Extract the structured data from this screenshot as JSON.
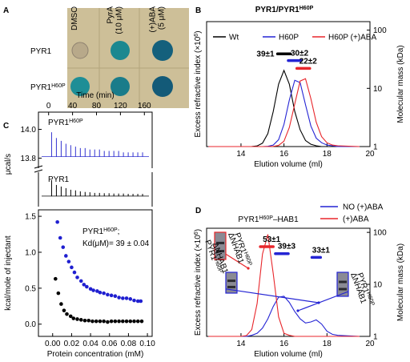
{
  "panel_labels": [
    "A",
    "B",
    "C",
    "D"
  ],
  "panel_a": {
    "columns": [
      {
        "lines": [
          "DMSO"
        ]
      },
      {
        "lines": [
          "PyrA",
          "(10 μM)"
        ]
      },
      {
        "lines": [
          "(+)ABA",
          "(5 μM)"
        ]
      }
    ],
    "rows": [
      [
        "PYR1"
      ],
      [
        "PYR1",
        "H60P"
      ]
    ]
  },
  "chart_data": [
    {
      "type": "line",
      "title": [
        "PYR1/PYR1",
        "H60P"
      ],
      "xlabel": "Elution volume (ml)",
      "ylabel": [
        "Excess refractive index (×10",
        "6",
        ")"
      ],
      "y2label": "Molecular mass (kDa)",
      "x": [
        12.5,
        14,
        14.25,
        14.5,
        14.75,
        15,
        15.25,
        15.5,
        15.75,
        16,
        16.25,
        16.5,
        16.75,
        17,
        17.25,
        17.5,
        17.75,
        18,
        18.25,
        18.5,
        19.5
      ],
      "xlim": [
        12.4,
        20
      ],
      "xticks": [
        14,
        16,
        18,
        20
      ],
      "ylim": [
        0,
        1.64
      ],
      "y2lim": [
        1,
        140
      ],
      "y2ticks": [
        1,
        10,
        100
      ],
      "y2scale": "log",
      "legend": "top",
      "series": [
        {
          "name": "Wt",
          "color": "#000000",
          "values": [
            0,
            0,
            0,
            0.001,
            0.008,
            0.044,
            0.17,
            0.46,
            0.82,
            1,
            0.82,
            0.46,
            0.22,
            0.08,
            0.03,
            0.01,
            0,
            0,
            0,
            0,
            0
          ]
        },
        {
          "name": "H60P",
          "color": "#2424d4",
          "values": [
            0,
            0,
            0,
            0,
            0,
            0,
            0.003,
            0.02,
            0.09,
            0.29,
            0.61,
            0.87,
            0.84,
            0.55,
            0.27,
            0.11,
            0.05,
            0.02,
            0.01,
            0,
            0
          ]
        },
        {
          "name": "H60P (+)ABA",
          "color": "#e8262b",
          "values": [
            0,
            0,
            0,
            0,
            0,
            0,
            0,
            0.002,
            0.015,
            0.07,
            0.25,
            0.56,
            0.86,
            0.89,
            0.63,
            0.32,
            0.13,
            0.05,
            0.02,
            0.01,
            0
          ]
        },
        {
          "label": "39±1",
          "color": "#000000",
          "axis": "y2",
          "x": [
            15.7,
            15.9,
            16.1,
            16.3
          ],
          "values": [
            39,
            39,
            39,
            39
          ]
        },
        {
          "label": "30±2",
          "color": "#2424d4",
          "axis": "y2",
          "x": [
            16.2,
            16.4,
            16.6,
            16.8
          ],
          "values": [
            30,
            30,
            30,
            30
          ]
        },
        {
          "label": "22±2",
          "color": "#e8262b",
          "axis": "y2",
          "x": [
            16.6,
            16.8,
            17.0,
            17.2
          ],
          "values": [
            22,
            22,
            22,
            22
          ]
        }
      ]
    },
    {
      "type": "spikes",
      "xlabel": "Time (min)",
      "xaxis": "top",
      "ylabel": "μcal/s",
      "xlim": [
        -17,
        173
      ],
      "xticks": [
        0,
        40,
        80,
        120,
        160
      ],
      "ylim": [
        13.73,
        14.12
      ],
      "yticks": [
        13.8,
        {
          "value": 14,
          "label": "14.0"
        }
      ],
      "series": [
        {
          "name": [
            "PYR1",
            "H60P"
          ],
          "color": "#3434d0",
          "baseline": 13.81,
          "x": [
            5,
            13,
            21,
            29,
            37,
            45,
            53,
            61,
            69,
            77,
            85,
            93,
            101,
            109,
            117,
            125,
            133,
            141,
            149,
            157
          ],
          "values": [
            13.98,
            13.94,
            13.92,
            13.9,
            13.89,
            13.88,
            13.87,
            13.87,
            13.86,
            13.86,
            13.86,
            13.85,
            13.85,
            13.85,
            13.85,
            13.84,
            13.84,
            13.84,
            13.84,
            13.84
          ]
        }
      ]
    },
    {
      "type": "spikes",
      "xlim": [
        -17,
        173
      ],
      "ylim": [
        -0.33,
        0.75
      ],
      "series": [
        {
          "name": [
            "PYR1"
          ],
          "color": "#000000",
          "baseline": 0,
          "x": [
            5,
            13,
            21,
            29,
            37,
            45,
            53,
            61,
            69,
            77,
            85,
            93,
            101,
            109,
            117,
            125,
            133,
            141,
            149,
            157
          ],
          "values": [
            0.5,
            0.35,
            0.3,
            0.25,
            0.2,
            0.18,
            0.15,
            0.13,
            0.12,
            0.1,
            0.1,
            0.09,
            0.09,
            0.08,
            0.08,
            0.08,
            0.07,
            0.07,
            0.07,
            0.07
          ]
        }
      ]
    },
    {
      "type": "scatter",
      "xlabel": "Protein concentration (mM)",
      "ylabel": "kcal/mole of injectant",
      "xlim": [
        -0.015,
        0.105
      ],
      "xticks": [
        {
          "value": 0,
          "label": "0.00"
        },
        0.02,
        0.04,
        0.06,
        0.08,
        {
          "value": 0.1,
          "label": "0.10"
        }
      ],
      "ylim": [
        -0.17,
        1.59
      ],
      "yticks": [
        {
          "value": 0,
          "label": "0.0"
        },
        0.5,
        {
          "value": 1,
          "label": "1.0"
        },
        1.5
      ],
      "note": [
        [
          "PYR1",
          "H60P",
          ";"
        ],
        [
          "Kd(μM)= 39 ± 0.04"
        ]
      ],
      "series": [
        {
          "color": "#1f1fd0",
          "x": [
            0.005,
            0.008,
            0.011,
            0.014,
            0.017,
            0.02,
            0.023,
            0.026,
            0.03,
            0.033,
            0.036,
            0.04,
            0.043,
            0.047,
            0.05,
            0.054,
            0.058,
            0.062,
            0.066,
            0.07,
            0.074,
            0.078,
            0.082,
            0.086,
            0.09,
            0.093
          ],
          "values": [
            1.42,
            1.2,
            1.07,
            0.95,
            0.87,
            0.79,
            0.72,
            0.65,
            0.6,
            0.55,
            0.52,
            0.49,
            0.47,
            0.46,
            0.44,
            0.43,
            0.41,
            0.4,
            0.39,
            0.37,
            0.36,
            0.36,
            0.35,
            0.33,
            0.32,
            0.32
          ]
        },
        {
          "color": "#000000",
          "x": [
            0.003,
            0.006,
            0.009,
            0.012,
            0.015,
            0.019,
            0.022,
            0.026,
            0.03,
            0.034,
            0.038,
            0.042,
            0.046,
            0.05,
            0.054,
            0.058,
            0.062,
            0.066,
            0.07,
            0.074,
            0.078,
            0.082,
            0.086,
            0.09,
            0.094
          ],
          "values": [
            0.63,
            0.43,
            0.28,
            0.19,
            0.14,
            0.11,
            0.08,
            0.07,
            0.06,
            0.05,
            0.05,
            0.04,
            0.04,
            0.04,
            0.04,
            0.03,
            0.04,
            0.04,
            0.04,
            0.04,
            0.04,
            0.04,
            0.04,
            0.04,
            0.04
          ]
        }
      ]
    },
    {
      "type": "line",
      "title": [
        "PYR1",
        "H60P",
        "–HAB1"
      ],
      "xlabel": "Elution volume (ml)",
      "ylabel": [
        "Excess refractive index (×10",
        "6",
        ")"
      ],
      "y2label": "Molecular mass (kDa)",
      "x": [
        12.5,
        14,
        14.25,
        14.5,
        14.75,
        15,
        15.25,
        15.5,
        15.75,
        16,
        16.25,
        16.5,
        16.75,
        17,
        17.25,
        17.5,
        17.75,
        18,
        18.25,
        18.5,
        19.5
      ],
      "xlim": [
        12.4,
        20
      ],
      "xticks": [
        14,
        16,
        18,
        20
      ],
      "ylim": [
        0,
        1.05
      ],
      "y2lim": [
        1,
        120
      ],
      "y2ticks": [
        1,
        10,
        100
      ],
      "y2scale": "log",
      "legend": "outside",
      "inset_labels": [
        [
          "ΔNHAB1"
        ],
        [
          "PYR1",
          "H60P"
        ]
      ],
      "series": [
        {
          "name": "NO (+)ABA",
          "color": "#2424d4",
          "values": [
            0,
            0,
            0,
            0.01,
            0.03,
            0.08,
            0.17,
            0.29,
            0.38,
            0.39,
            0.33,
            0.24,
            0.17,
            0.13,
            0.14,
            0.16,
            0.12,
            0.05,
            0.02,
            0.01,
            0
          ]
        },
        {
          "name": "(+)ABA",
          "color": "#e8262b",
          "values": [
            0,
            0,
            0.007,
            0.066,
            0.32,
            0.8,
            0.99,
            0.61,
            0.19,
            0.03,
            0.01,
            0,
            0,
            0,
            0,
            0,
            0,
            0,
            0,
            0,
            0
          ]
        },
        {
          "label": "53±1",
          "color": "#e8262b",
          "axis": "y2",
          "x": [
            14.9,
            15.1,
            15.3,
            15.5
          ],
          "values": [
            53,
            53,
            53,
            53
          ]
        },
        {
          "label": "39±3",
          "color": "#2424d4",
          "axis": "y2",
          "x": [
            15.6,
            15.8,
            16.0,
            16.2
          ],
          "values": [
            39,
            39,
            39,
            39
          ]
        },
        {
          "label": "33±1",
          "color": "#2424d4",
          "axis": "y2",
          "x": [
            17.3,
            17.5,
            17.7
          ],
          "values": [
            33,
            33,
            33
          ]
        }
      ]
    }
  ]
}
